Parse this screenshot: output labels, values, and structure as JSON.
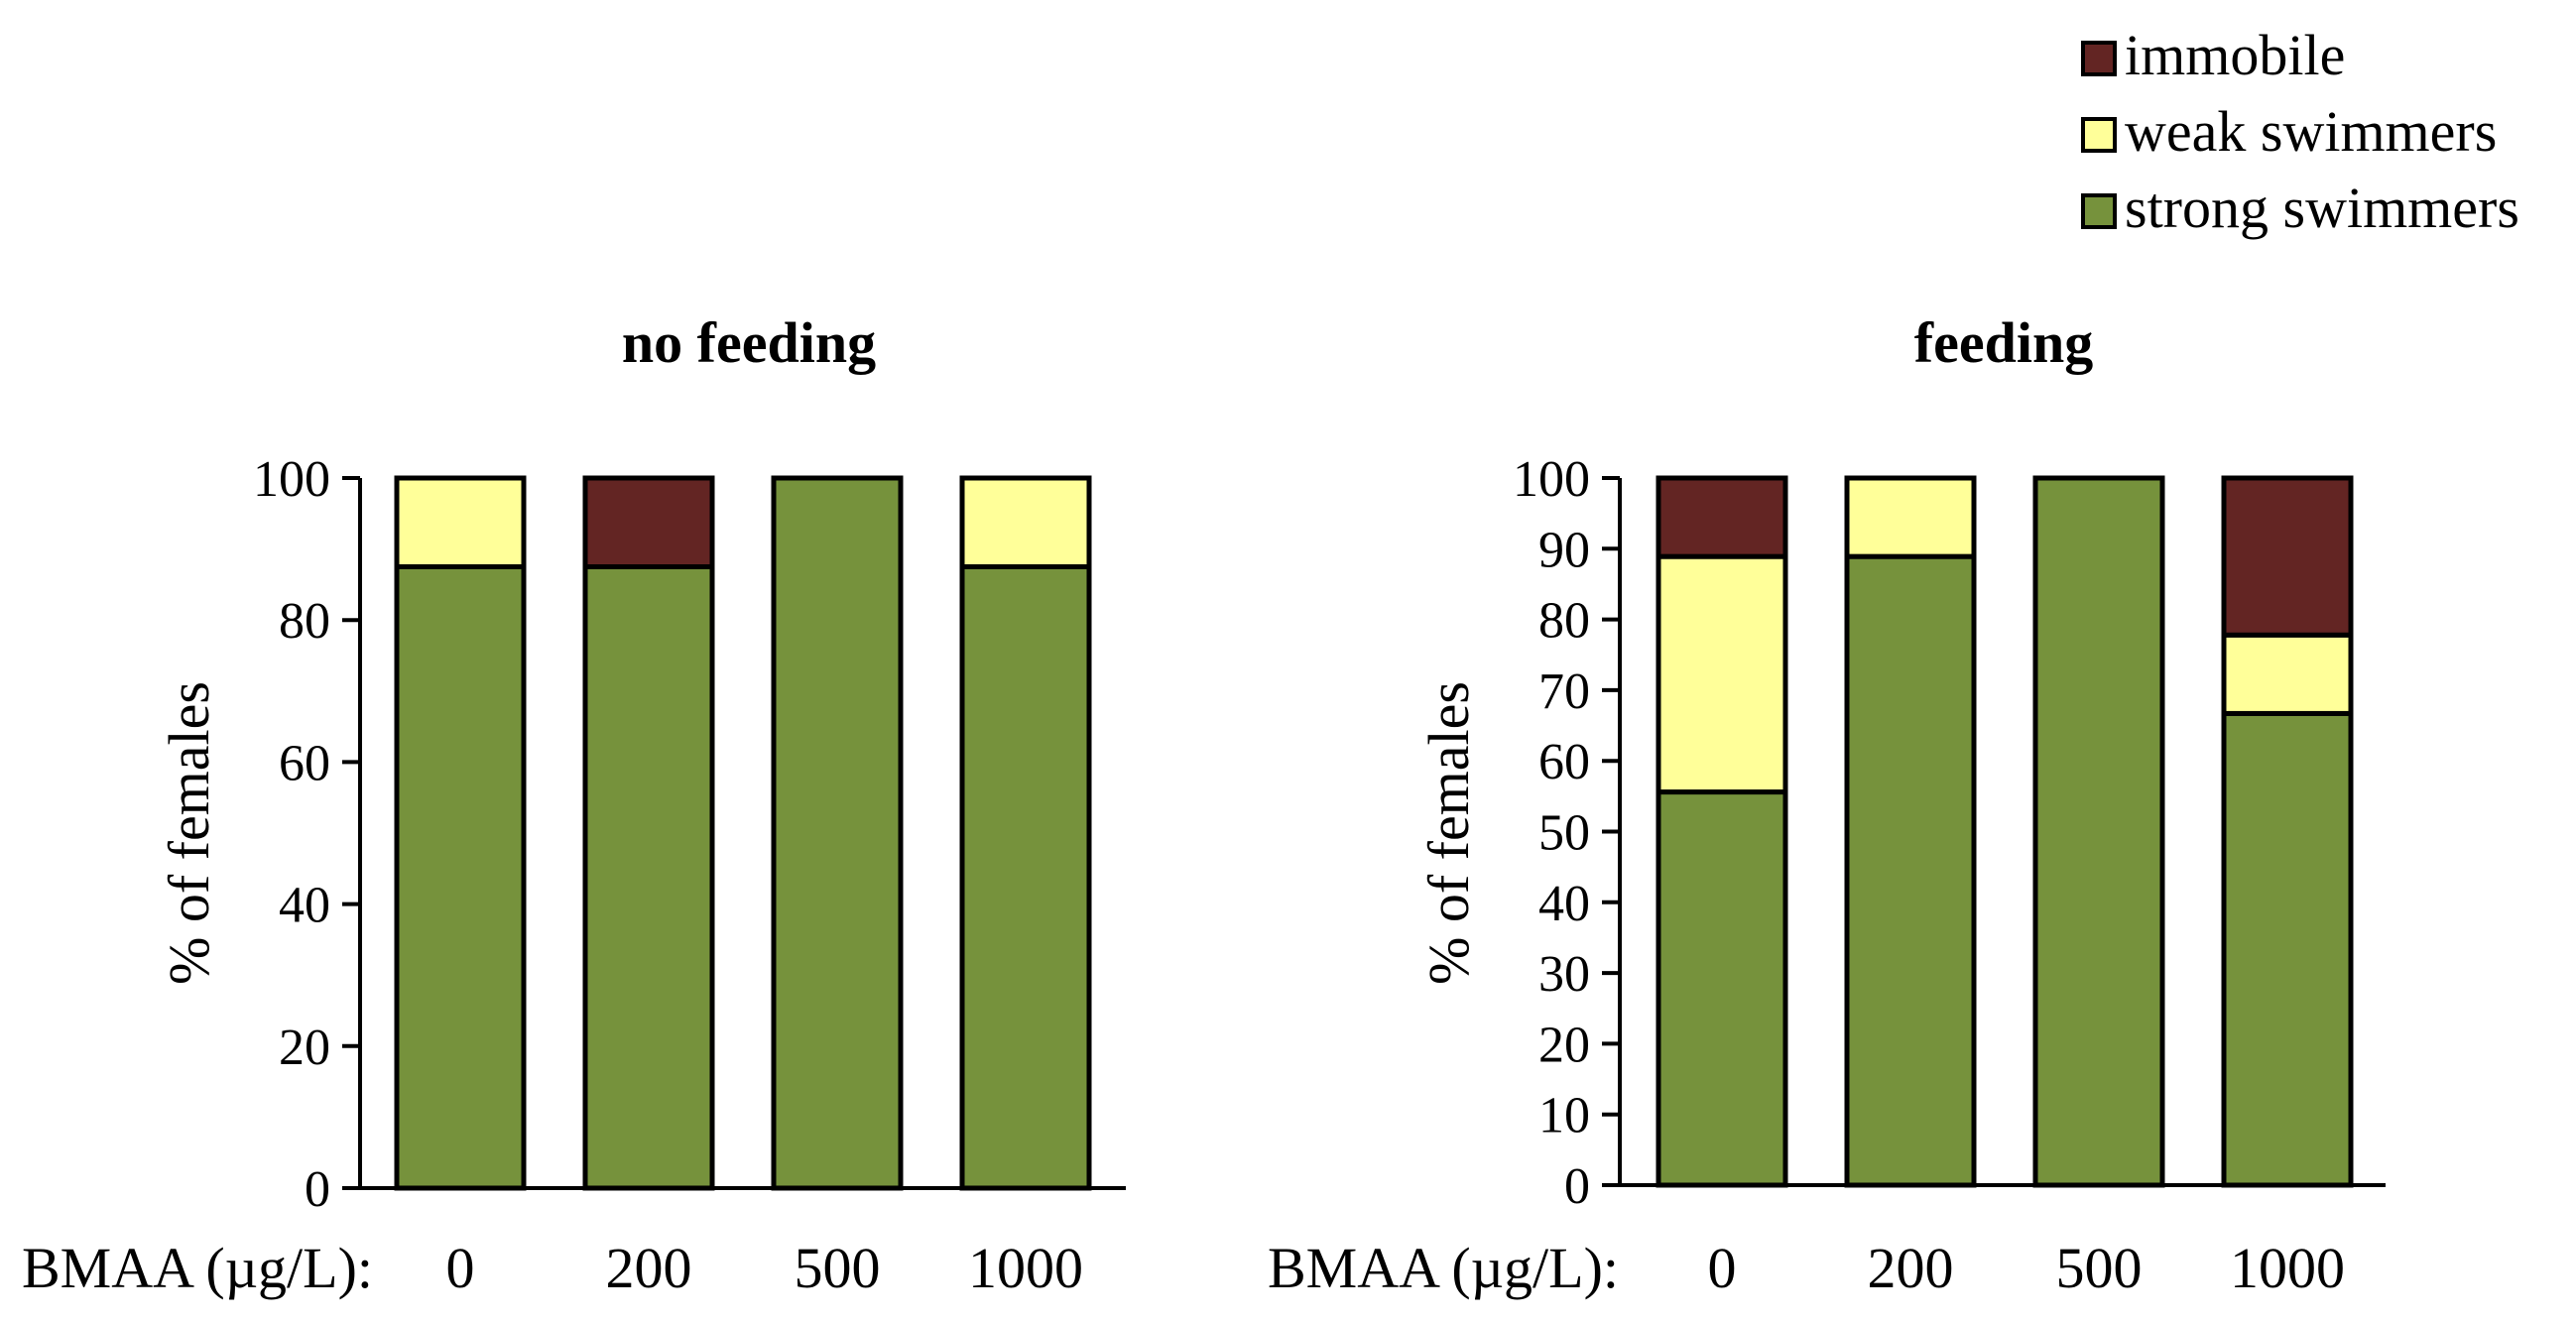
{
  "colors": {
    "strong": "#76923C",
    "weak": "#FFFF99",
    "immobile": "#632523",
    "stroke": "#000000"
  },
  "legend": {
    "items": [
      {
        "key": "immobile",
        "label": "immobile"
      },
      {
        "key": "weak",
        "label": "weak swimmers"
      },
      {
        "key": "strong",
        "label": "strong swimmers"
      }
    ]
  },
  "chart_data": [
    {
      "type": "bar",
      "stacked": true,
      "title": "no feeding",
      "ylabel": "% of females",
      "xlabel": "BMAA  (µg/L):",
      "ylim": [
        0,
        100
      ],
      "yticks": [
        0,
        20,
        40,
        60,
        80,
        100
      ],
      "categories": [
        "0",
        "200",
        "500",
        "1000"
      ],
      "series": [
        {
          "key": "strong",
          "name": "strong swimmers",
          "values": [
            87.5,
            87.5,
            100,
            87.5
          ]
        },
        {
          "key": "weak",
          "name": "weak swimmers",
          "values": [
            12.5,
            0,
            0,
            12.5
          ]
        },
        {
          "key": "immobile",
          "name": "immobile",
          "values": [
            0,
            12.5,
            0,
            0
          ]
        }
      ]
    },
    {
      "type": "bar",
      "stacked": true,
      "title": "feeding",
      "ylabel": "% of females",
      "xlabel": "BMAA  (µg/L):",
      "ylim": [
        0,
        100
      ],
      "yticks": [
        0,
        10,
        20,
        30,
        40,
        50,
        60,
        70,
        80,
        90,
        100
      ],
      "categories": [
        "0",
        "200",
        "500",
        "1000"
      ],
      "series": [
        {
          "key": "strong",
          "name": "strong swimmers",
          "values": [
            55.6,
            88.9,
            100,
            66.7
          ]
        },
        {
          "key": "weak",
          "name": "weak swimmers",
          "values": [
            33.3,
            11.1,
            0,
            11.1
          ]
        },
        {
          "key": "immobile",
          "name": "immobile",
          "values": [
            11.1,
            0,
            0,
            22.2
          ]
        }
      ]
    }
  ]
}
